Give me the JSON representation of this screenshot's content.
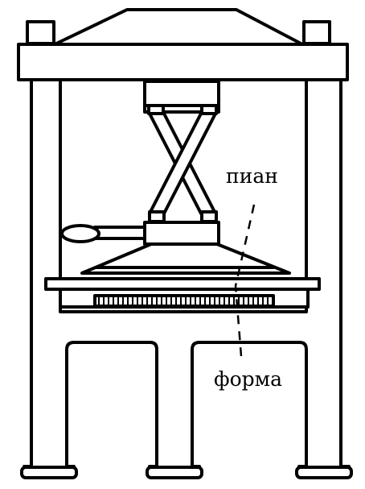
{
  "labels": {
    "pian": "пиан",
    "forma": "форма"
  },
  "colors": {
    "ink": "#000000",
    "paper": "#ffffff"
  }
}
